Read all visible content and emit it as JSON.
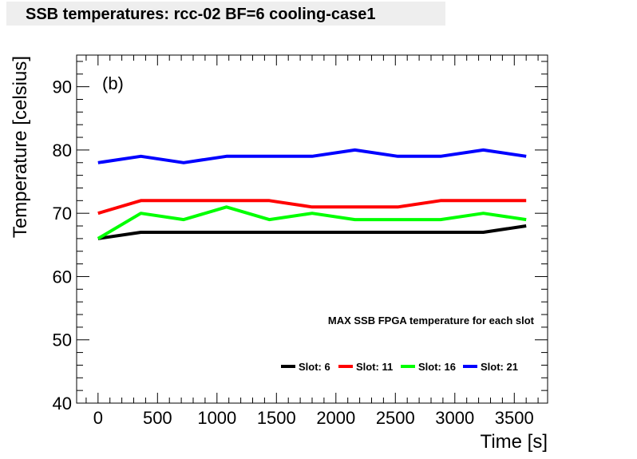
{
  "page_title": "SSB temperatures: rcc-02 BF=6 cooling-case1",
  "chart_data": {
    "type": "line",
    "title": "SSB temperatures: rcc-02 BF=6 cooling-case1",
    "panel_label": "(b)",
    "annotation": "MAX SSB FPGA temperature for each slot",
    "xlabel": "Time [s]",
    "ylabel": "Temperature [celsius]",
    "xlim": [
      -180,
      3780
    ],
    "ylim": [
      40,
      95
    ],
    "xticks": [
      0,
      500,
      1000,
      1500,
      2000,
      2500,
      3000,
      3500
    ],
    "xtick_labels": [
      "0",
      "500",
      "1000",
      "1500",
      "2000",
      "2500",
      "3000",
      "3500"
    ],
    "yticks": [
      40,
      50,
      60,
      70,
      80,
      90
    ],
    "ytick_labels": [
      "40",
      "50",
      "60",
      "70",
      "80",
      "90"
    ],
    "grid": false,
    "legend_position": "bottom-right inside",
    "x": [
      0,
      360,
      720,
      1080,
      1440,
      1800,
      2160,
      2520,
      2880,
      3240,
      3600
    ],
    "series": [
      {
        "name": "Slot: 6",
        "color": "#000000",
        "values": [
          66,
          67,
          67,
          67,
          67,
          67,
          67,
          67,
          67,
          67,
          68
        ]
      },
      {
        "name": "Slot: 11",
        "color": "#ff0000",
        "values": [
          70,
          72,
          72,
          72,
          72,
          71,
          71,
          71,
          72,
          72,
          72
        ]
      },
      {
        "name": "Slot: 16",
        "color": "#00ff00",
        "values": [
          66,
          70,
          69,
          71,
          69,
          70,
          69,
          69,
          69,
          70,
          69
        ]
      },
      {
        "name": "Slot: 21",
        "color": "#0000ff",
        "values": [
          78,
          79,
          78,
          79,
          79,
          79,
          80,
          79,
          79,
          80,
          79
        ]
      }
    ]
  }
}
